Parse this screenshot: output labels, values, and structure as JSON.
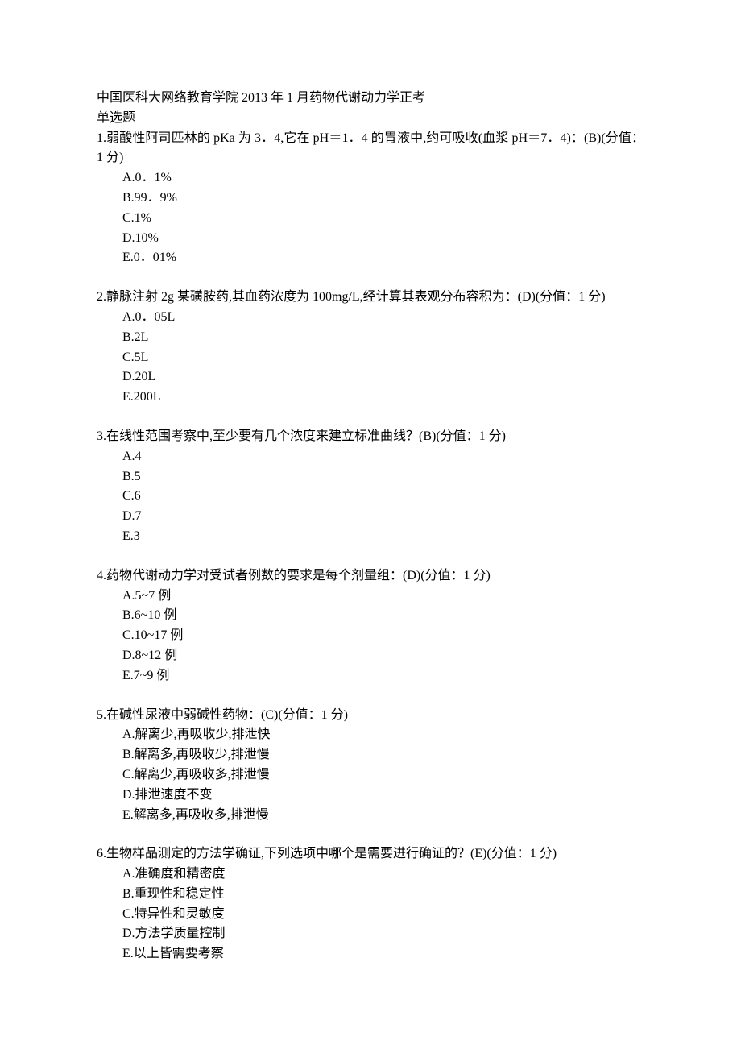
{
  "doc": {
    "title": "中国医科大网络教育学院 2013 年 1 月药物代谢动力学正考",
    "section": "单选题",
    "questions": [
      {
        "num": "1",
        "stem": "弱酸性阿司匹林的 pKa 为 3．4,它在 pH＝1．4 的胃液中,约可吸收(血浆 pH＝7．4)：(B)(分值：1 分)",
        "opts": [
          "A.0．1%",
          "B.99．9%",
          "C.1%",
          "D.10%",
          "E.0．01%"
        ]
      },
      {
        "num": "2",
        "stem": "静脉注射 2g 某磺胺药,其血药浓度为 100mg/L,经计算其表观分布容积为：(D)(分值：1 分)",
        "opts": [
          "A.0．05L",
          "B.2L",
          "C.5L",
          "D.20L",
          "E.200L"
        ]
      },
      {
        "num": "3",
        "stem": "在线性范围考察中,至少要有几个浓度来建立标准曲线？(B)(分值：1 分)",
        "opts": [
          "A.4",
          "B.5",
          "C.6",
          "D.7",
          "E.3"
        ]
      },
      {
        "num": "4",
        "stem": "药物代谢动力学对受试者例数的要求是每个剂量组：(D)(分值：1 分)",
        "opts": [
          "A.5~7 例",
          "B.6~10 例",
          "C.10~17 例",
          "D.8~12 例",
          "E.7~9 例"
        ]
      },
      {
        "num": "5",
        "stem": "在碱性尿液中弱碱性药物：(C)(分值：1 分)",
        "opts": [
          "A.解离少,再吸收少,排泄快",
          "B.解离多,再吸收少,排泄慢",
          "C.解离少,再吸收多,排泄慢",
          "D.排泄速度不变",
          "E.解离多,再吸收多,排泄慢"
        ]
      },
      {
        "num": "6",
        "stem": "生物样品测定的方法学确证,下列选项中哪个是需要进行确证的？(E)(分值：1 分)",
        "opts": [
          "A.准确度和精密度",
          "B.重现性和稳定性",
          "C.特异性和灵敏度",
          "D.方法学质量控制",
          "E.以上皆需要考察"
        ]
      }
    ]
  }
}
